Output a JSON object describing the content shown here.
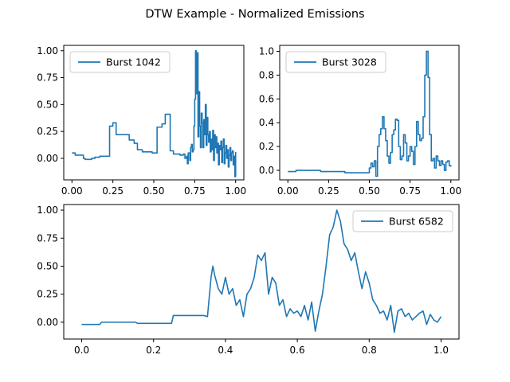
{
  "title": "DTW Example - Normalized Emissions",
  "colors": {
    "series": "#1f77b4"
  },
  "chart_data": [
    {
      "type": "line",
      "name": "top-left",
      "legend": "upper-left",
      "xlim": [
        -0.05,
        1.05
      ],
      "ylim": [
        -0.2,
        1.05
      ],
      "xticks": [
        0.0,
        0.25,
        0.5,
        0.75,
        1.0
      ],
      "xtick_labels": [
        "0.00",
        "0.25",
        "0.50",
        "0.75",
        "1.00"
      ],
      "yticks": [
        0.0,
        0.25,
        0.5,
        0.75,
        1.0
      ],
      "ytick_labels": [
        "0.00",
        "0.25",
        "0.50",
        "0.75",
        "1.00"
      ],
      "series": [
        {
          "name": "Burst 1042",
          "step": true,
          "x": [
            0.0,
            0.02,
            0.07,
            0.08,
            0.12,
            0.14,
            0.15,
            0.17,
            0.23,
            0.25,
            0.27,
            0.29,
            0.35,
            0.38,
            0.4,
            0.43,
            0.49,
            0.52,
            0.55,
            0.57,
            0.6,
            0.62,
            0.66,
            0.68,
            0.69,
            0.7,
            0.705,
            0.71,
            0.72,
            0.725,
            0.73,
            0.735,
            0.74,
            0.745,
            0.75,
            0.755,
            0.76,
            0.765,
            0.77,
            0.775,
            0.78,
            0.785,
            0.79,
            0.795,
            0.8,
            0.805,
            0.81,
            0.815,
            0.82,
            0.825,
            0.83,
            0.835,
            0.84,
            0.845,
            0.85,
            0.855,
            0.86,
            0.865,
            0.87,
            0.875,
            0.88,
            0.885,
            0.89,
            0.895,
            0.9,
            0.905,
            0.91,
            0.915,
            0.92,
            0.925,
            0.93,
            0.935,
            0.94,
            0.945,
            0.95,
            0.955,
            0.96,
            0.965,
            0.97,
            0.975,
            0.98,
            0.985,
            0.99,
            0.995,
            1.0
          ],
          "y": [
            0.05,
            0.03,
            0.0,
            -0.01,
            0.0,
            0.01,
            0.01,
            0.02,
            0.3,
            0.33,
            0.22,
            0.22,
            0.17,
            0.14,
            0.08,
            0.06,
            0.05,
            0.29,
            0.32,
            0.41,
            0.07,
            0.04,
            0.03,
            0.04,
            0.0,
            0.02,
            -0.05,
            0.05,
            -0.02,
            0.1,
            0.13,
            0.06,
            0.08,
            0.3,
            0.55,
            1.0,
            0.6,
            0.98,
            0.2,
            0.62,
            0.3,
            0.1,
            0.42,
            0.33,
            0.1,
            0.36,
            0.22,
            0.5,
            0.12,
            0.38,
            0.22,
            0.15,
            0.25,
            0.06,
            0.18,
            0.08,
            0.26,
            -0.02,
            0.22,
            0.1,
            0.2,
            0.05,
            0.14,
            -0.06,
            0.12,
            0.08,
            0.16,
            -0.04,
            0.1,
            0.18,
            -0.05,
            0.05,
            0.12,
            0.0,
            0.08,
            -0.08,
            0.03,
            0.1,
            -0.02,
            0.05,
            0.07,
            -0.06,
            0.02,
            -0.17,
            0.06
          ]
        }
      ]
    },
    {
      "type": "line",
      "name": "top-right",
      "legend": "upper-left",
      "xlim": [
        -0.05,
        1.05
      ],
      "ylim": [
        -0.08,
        1.05
      ],
      "xticks": [
        0.0,
        0.25,
        0.5,
        0.75,
        1.0
      ],
      "xtick_labels": [
        "0.00",
        "0.25",
        "0.50",
        "0.75",
        "1.00"
      ],
      "yticks": [
        0.0,
        0.2,
        0.4,
        0.6,
        0.8,
        1.0
      ],
      "ytick_labels": [
        "0.0",
        "0.2",
        "0.4",
        "0.6",
        "0.8",
        "1.0"
      ],
      "series": [
        {
          "name": "Burst 3028",
          "step": true,
          "x": [
            0.0,
            0.05,
            0.2,
            0.35,
            0.5,
            0.51,
            0.52,
            0.53,
            0.54,
            0.55,
            0.56,
            0.57,
            0.58,
            0.59,
            0.6,
            0.61,
            0.62,
            0.63,
            0.64,
            0.65,
            0.66,
            0.67,
            0.68,
            0.69,
            0.7,
            0.71,
            0.72,
            0.73,
            0.74,
            0.75,
            0.76,
            0.77,
            0.78,
            0.79,
            0.8,
            0.81,
            0.82,
            0.83,
            0.84,
            0.85,
            0.86,
            0.87,
            0.88,
            0.89,
            0.9,
            0.91,
            0.92,
            0.93,
            0.94,
            0.95,
            0.96,
            0.97,
            0.98,
            0.99,
            1.0
          ],
          "y": [
            -0.01,
            0.0,
            -0.01,
            -0.02,
            0.02,
            0.06,
            0.03,
            0.08,
            -0.05,
            0.2,
            0.3,
            0.35,
            0.45,
            0.35,
            0.25,
            0.12,
            0.06,
            0.15,
            0.3,
            0.34,
            0.43,
            0.42,
            0.2,
            0.09,
            0.12,
            0.3,
            0.23,
            0.08,
            0.12,
            0.2,
            0.16,
            0.05,
            0.2,
            0.41,
            0.3,
            0.25,
            0.27,
            0.45,
            0.8,
            1.0,
            0.78,
            0.3,
            0.08,
            0.1,
            0.02,
            0.12,
            0.08,
            0.04,
            0.08,
            0.05,
            0.0,
            0.07,
            0.08,
            0.04,
            0.03
          ]
        }
      ]
    },
    {
      "type": "line",
      "name": "bottom",
      "legend": "upper-right",
      "xlim": [
        -0.05,
        1.05
      ],
      "ylim": [
        -0.15,
        1.05
      ],
      "xticks": [
        0.0,
        0.2,
        0.4,
        0.6,
        0.8,
        1.0
      ],
      "xtick_labels": [
        "0.0",
        "0.2",
        "0.4",
        "0.6",
        "0.8",
        "1.0"
      ],
      "yticks": [
        0.0,
        0.25,
        0.5,
        0.75,
        1.0
      ],
      "ytick_labels": [
        "0.00",
        "0.25",
        "0.50",
        "0.75",
        "1.00"
      ],
      "series": [
        {
          "name": "Burst 6582",
          "step": false,
          "x": [
            0.0,
            0.05,
            0.055,
            0.15,
            0.155,
            0.25,
            0.255,
            0.34,
            0.35,
            0.36,
            0.365,
            0.37,
            0.38,
            0.39,
            0.4,
            0.41,
            0.42,
            0.43,
            0.44,
            0.45,
            0.46,
            0.47,
            0.48,
            0.49,
            0.5,
            0.51,
            0.52,
            0.53,
            0.54,
            0.55,
            0.56,
            0.57,
            0.58,
            0.59,
            0.6,
            0.61,
            0.62,
            0.63,
            0.64,
            0.65,
            0.66,
            0.67,
            0.68,
            0.69,
            0.7,
            0.71,
            0.72,
            0.73,
            0.74,
            0.75,
            0.76,
            0.77,
            0.78,
            0.79,
            0.8,
            0.81,
            0.82,
            0.83,
            0.84,
            0.85,
            0.86,
            0.87,
            0.88,
            0.89,
            0.9,
            0.91,
            0.92,
            0.93,
            0.94,
            0.95,
            0.96,
            0.97,
            0.98,
            0.99,
            1.0
          ],
          "y": [
            -0.02,
            -0.02,
            0.0,
            0.0,
            -0.01,
            -0.01,
            0.06,
            0.06,
            0.05,
            0.4,
            0.5,
            0.42,
            0.3,
            0.25,
            0.4,
            0.25,
            0.3,
            0.15,
            0.2,
            0.05,
            0.25,
            0.3,
            0.4,
            0.6,
            0.55,
            0.62,
            0.25,
            0.4,
            0.35,
            0.15,
            0.2,
            0.05,
            0.12,
            0.08,
            0.1,
            0.05,
            0.15,
            0.02,
            0.18,
            -0.08,
            0.1,
            0.25,
            0.5,
            0.78,
            0.85,
            1.0,
            0.9,
            0.7,
            0.65,
            0.55,
            0.62,
            0.45,
            0.3,
            0.45,
            0.35,
            0.2,
            0.15,
            0.08,
            0.1,
            0.02,
            0.15,
            -0.09,
            0.1,
            0.12,
            0.05,
            0.08,
            0.02,
            0.05,
            0.08,
            0.1,
            -0.02,
            0.07,
            0.02,
            0.0,
            0.05
          ]
        }
      ]
    }
  ]
}
